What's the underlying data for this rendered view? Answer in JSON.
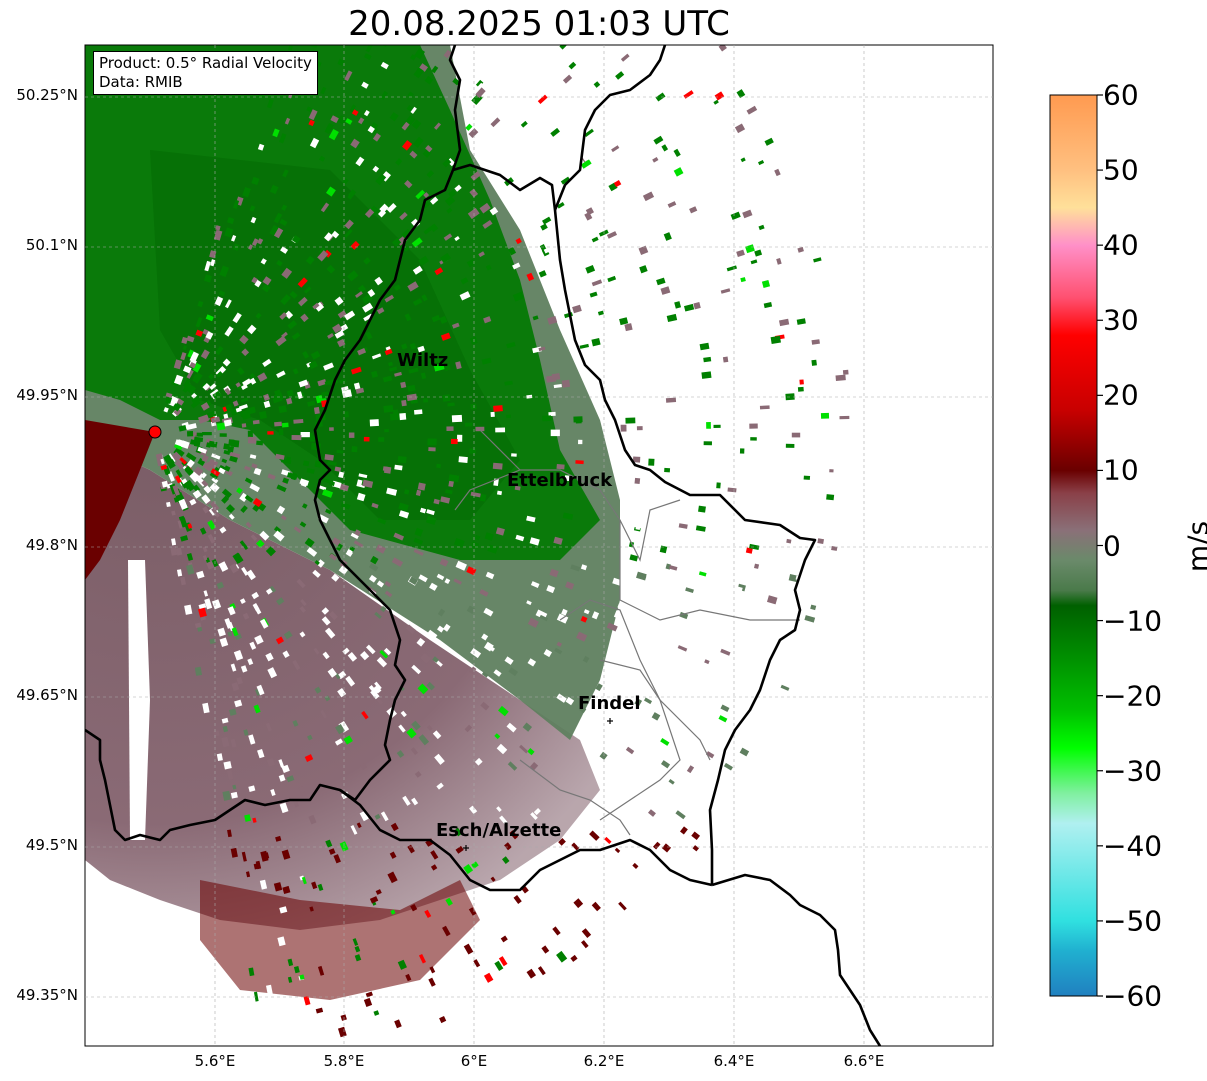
{
  "title": "20.08.2025 01:03 UTC",
  "infobox": {
    "product": "Product: 0.5° Radial Velocity",
    "data": "Data: RMIB"
  },
  "y_ticks": [
    "50.25°N",
    "50.1°N",
    "49.95°N",
    "49.8°N",
    "49.65°N",
    "49.5°N",
    "49.35°N"
  ],
  "x_ticks": [
    "5.6°E",
    "5.8°E",
    "6°E",
    "6.2°E",
    "6.4°E",
    "6.6°E"
  ],
  "cities": [
    {
      "name": "Wiltz"
    },
    {
      "name": "Ettelbruck"
    },
    {
      "name": "Findel"
    },
    {
      "name": "Esch/Alzette"
    }
  ],
  "colorbar": {
    "unit": "m/s",
    "ticks": [
      "60",
      "50",
      "40",
      "30",
      "20",
      "10",
      "0",
      "−10",
      "−20",
      "−30",
      "−40",
      "−50",
      "−60"
    ],
    "range": [
      -60,
      60
    ],
    "stops": [
      {
        "v": 60,
        "color": "#ff9a50"
      },
      {
        "v": 50,
        "color": "#ffc080"
      },
      {
        "v": 45,
        "color": "#ffe09a"
      },
      {
        "v": 40,
        "color": "#ff90c8"
      },
      {
        "v": 33,
        "color": "#ff5070"
      },
      {
        "v": 28,
        "color": "#ff0000"
      },
      {
        "v": 18,
        "color": "#c80000"
      },
      {
        "v": 10,
        "color": "#6a0000"
      },
      {
        "v": 7,
        "color": "#8a4048"
      },
      {
        "v": 2,
        "color": "#8a7078"
      },
      {
        "v": -2,
        "color": "#6a8a6a"
      },
      {
        "v": -6,
        "color": "#4a7a4a"
      },
      {
        "v": -8,
        "color": "#006000"
      },
      {
        "v": -22,
        "color": "#00c000"
      },
      {
        "v": -27,
        "color": "#00ff00"
      },
      {
        "v": -33,
        "color": "#80f0a0"
      },
      {
        "v": -37,
        "color": "#b0f0f0"
      },
      {
        "v": -50,
        "color": "#30e0e0"
      },
      {
        "v": -54,
        "color": "#20b0d0"
      },
      {
        "v": -60,
        "color": "#2080c0"
      }
    ]
  },
  "radar_site": {
    "color": "#ff0000"
  },
  "velocity_colors": {
    "outbound_far": "#6a0000",
    "inbound": "#008000",
    "zero_green": "#5f7f5f",
    "zero_purple": "#8a6a75"
  }
}
